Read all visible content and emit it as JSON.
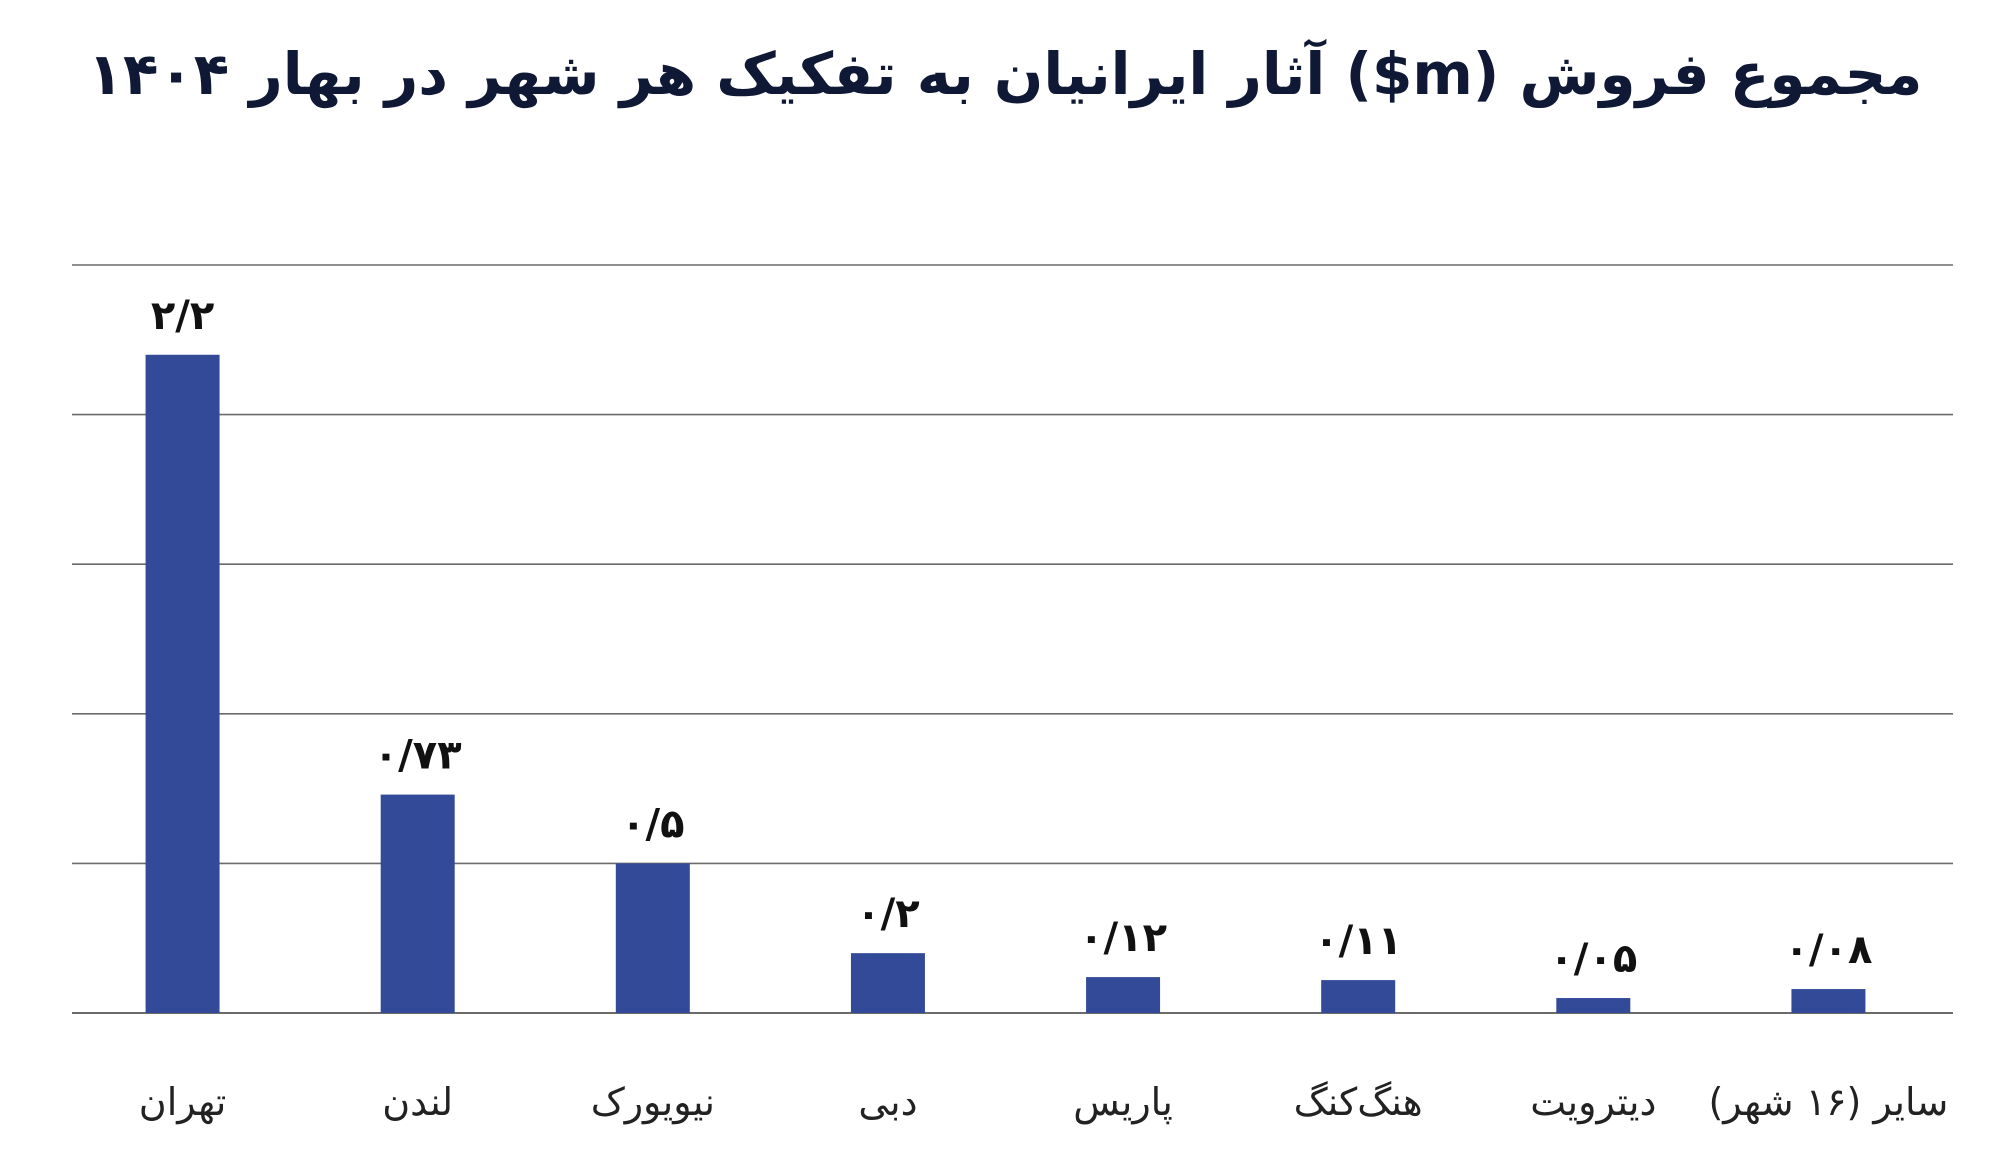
{
  "chart_data": {
    "type": "bar",
    "title": "مجموع فروش (m$) آثار ایرانیان به تفکیک هر شهر در بهار ۱۴۰۴",
    "categories": [
      "تهران",
      "لندن",
      "نیویورک",
      "دبی",
      "پاریس",
      "هنگ‌کنگ",
      "دیترویت",
      "سایر (۱۶ شهر)"
    ],
    "values": [
      2.2,
      0.73,
      0.5,
      0.2,
      0.12,
      0.11,
      0.05,
      0.08
    ],
    "value_labels": [
      "۲/۲",
      "۰/۷۳",
      "۰/۵",
      "۰/۲",
      "۰/۱۲",
      "۰/۱۱",
      "۰/۰۵",
      "۰/۰۸"
    ],
    "xlabel": "",
    "ylabel": "",
    "ylim": [
      0,
      2.5
    ],
    "y_ticks_shown": false,
    "grid": true,
    "legend": "none",
    "colors": {
      "bar": "#334a99",
      "grid": "#6b6b6b",
      "title": "#0f1834",
      "text": "#111111"
    }
  }
}
